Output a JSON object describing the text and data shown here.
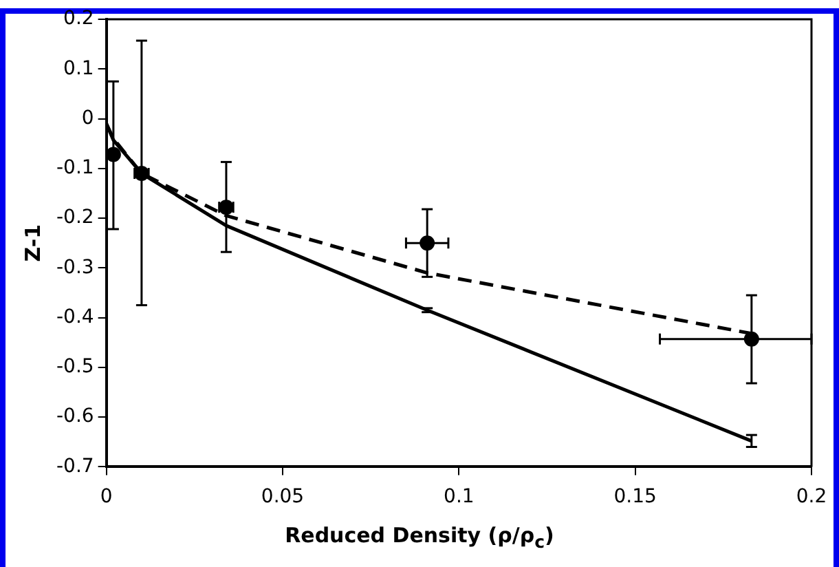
{
  "chart_data": {
    "type": "scatter",
    "xlabel": "Reduced Density (ρ/ρ$_{c}$)",
    "ylabel": "Z-1",
    "xlim": [
      0,
      0.2
    ],
    "xticks": [
      0,
      0.05,
      0.1,
      0.15,
      0.2
    ],
    "ylim": [
      -0.7,
      0.2
    ],
    "yticks": [
      -0.7,
      -0.6,
      -0.5,
      -0.4,
      -0.3,
      -0.2,
      -0.1,
      0,
      0.1,
      0.2
    ],
    "grid": false,
    "legend": false,
    "series": [
      {
        "type": "line",
        "color": "#000000",
        "line_style": "solid",
        "marker": "none",
        "x": [
          0,
          0.002,
          0.01,
          0.034,
          0.091,
          0.183
        ],
        "values": [
          -0.01,
          -0.043,
          -0.11,
          -0.215,
          -0.385,
          -0.648
        ],
        "errors": [
          null,
          null,
          null,
          null,
          0.004,
          0.012
        ]
      },
      {
        "type": "line",
        "color": "#000000",
        "line_style": "dashed",
        "marker": "none",
        "x": [
          0,
          0.002,
          0.01,
          0.034,
          0.091,
          0.183
        ],
        "values": [
          -0.01,
          -0.04,
          -0.11,
          -0.195,
          -0.31,
          -0.432
        ]
      },
      {
        "type": "scatter",
        "color": "#000000",
        "marker": "circle",
        "x": [
          0.002,
          0.01,
          0.034,
          0.091,
          0.183
        ],
        "values": [
          -0.072,
          -0.11,
          -0.178,
          -0.25,
          -0.443
        ],
        "errors": [
          [
            -0.222,
            0.075
          ],
          [
            -0.375,
            0.157
          ],
          [
            -0.268,
            -0.087
          ],
          [
            -0.318,
            -0.182
          ],
          [
            -0.532,
            -0.355
          ]
        ],
        "xerrors": [
          null,
          [
            0.008,
            0.012
          ],
          [
            0.032,
            0.036
          ],
          [
            0.085,
            0.097
          ],
          [
            0.157,
            0.2
          ]
        ]
      }
    ]
  }
}
